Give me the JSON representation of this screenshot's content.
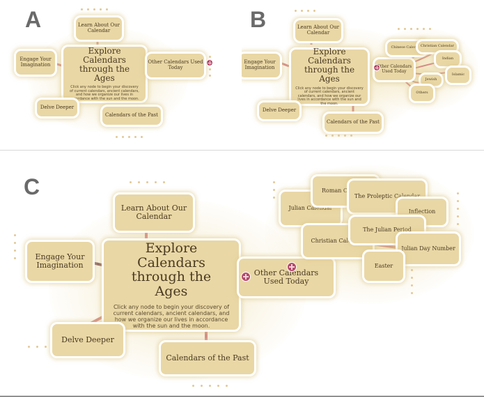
{
  "panels": {
    "a": {
      "label": "A"
    },
    "b": {
      "label": "B"
    },
    "c": {
      "label": "C"
    }
  },
  "nodes": {
    "learn": "Learn About Our Calendar",
    "engage": "Engage Your Imagination",
    "explore_title": "Explore Calendars through the Ages",
    "explore_desc": "Click any node to begin your discovery of current calendars, ancient calendars, and how we organize our lives in accordance with the sun and the moon.",
    "other": "Other Calendars Used Today",
    "delve": "Delve Deeper",
    "past": "Calendars of the Past",
    "chinese": "Chinese Calendar",
    "christian": "Christian Calendar",
    "indian": "Indian",
    "jewish": "Jewish",
    "islamic": "Islamic",
    "others": "Others",
    "roman": "Roman Calendar",
    "julian": "Julian Calendar",
    "proleptic": "The Proleptic Calendar",
    "intercalation": "Inflection",
    "julian_period": "The Julian Period",
    "julian_day": "Julian Day Number",
    "easter": "Easter"
  },
  "colors": {
    "node_fill": "#e9d7a5",
    "node_border": "#ffffff",
    "link": "#d48a86",
    "expander": "#b44a6a",
    "glow": "#eedeaa"
  }
}
